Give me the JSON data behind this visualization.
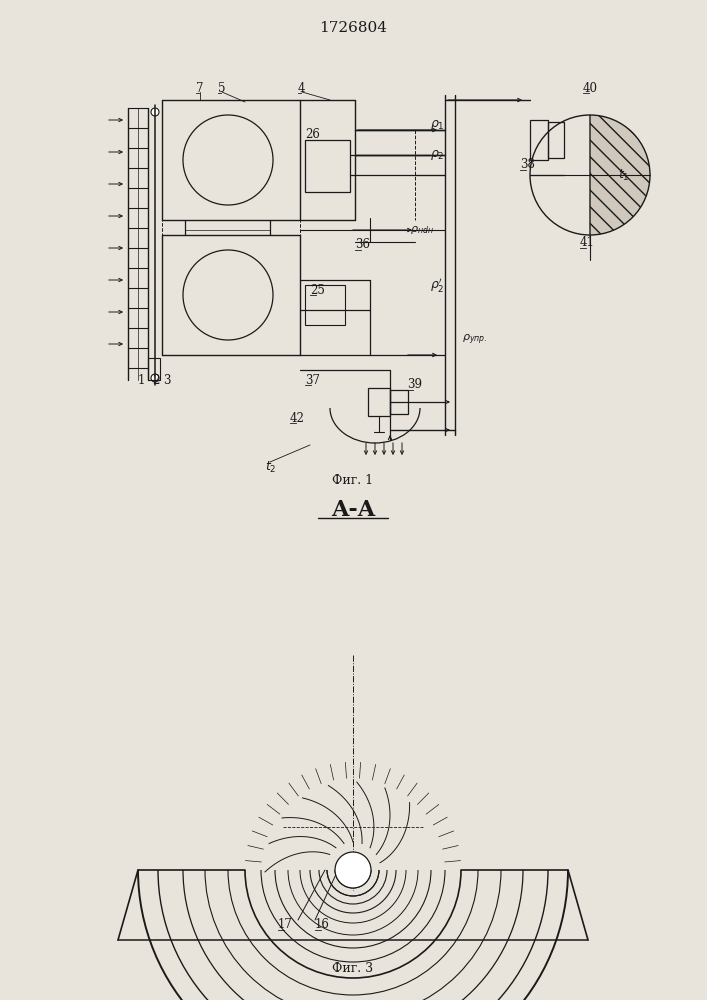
{
  "title": "1726804",
  "title_fontsize": 11,
  "bg_color": "#e8e4dc",
  "line_color": "#1a1a1a",
  "fig1_caption": "Фиг. 1",
  "fig3_caption": "Фиг. 3",
  "section_label": "A-A"
}
